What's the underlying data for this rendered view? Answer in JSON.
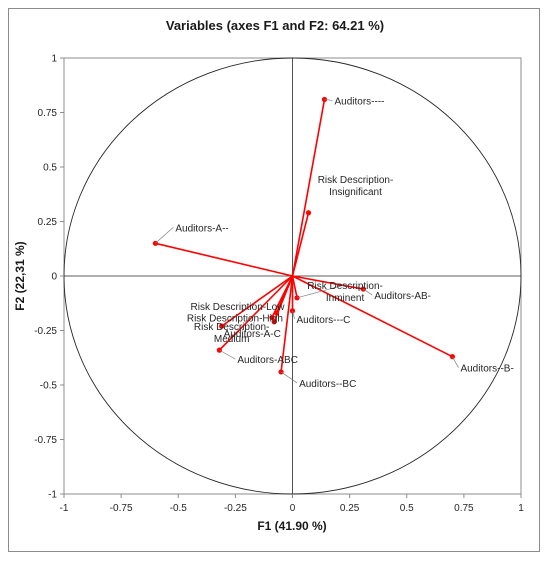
{
  "chart_data": {
    "type": "scatter",
    "title": "Variables (axes F1 and F2: 64.21 %)",
    "xlabel": "F1 (41.90 %)",
    "ylabel": "F2 (22,31 %)",
    "xlim": [
      -1,
      1
    ],
    "ylim": [
      -1,
      1
    ],
    "x_ticks": [
      "-1",
      "-0.75",
      "-0.5",
      "-0.25",
      "0",
      "0.25",
      "0.5",
      "0.75",
      "1"
    ],
    "y_ticks": [
      "1",
      "0.75",
      "0.5",
      "0.25",
      "0",
      "-0.25",
      "-0.5",
      "-0.75",
      "-1"
    ],
    "grid": false,
    "correlation_circle": true,
    "vector_color": "#ff0000",
    "points": [
      {
        "label": "Auditors----",
        "x": 0.14,
        "y": 0.81
      },
      {
        "label": "Risk Description-Insignificant",
        "x": 0.07,
        "y": 0.29
      },
      {
        "label": "Auditors-A--",
        "x": -0.6,
        "y": 0.15
      },
      {
        "label": "Auditors-AB-",
        "x": 0.31,
        "y": -0.06
      },
      {
        "label": "Auditors--B-",
        "x": 0.7,
        "y": -0.37
      },
      {
        "label": "Risk Description-Inminent",
        "x": 0.02,
        "y": -0.1
      },
      {
        "label": "Auditors---C",
        "x": 0.0,
        "y": -0.16
      },
      {
        "label": "Risk Description-Low",
        "x": -0.07,
        "y": -0.17
      },
      {
        "label": "Risk Description-High",
        "x": -0.09,
        "y": -0.19
      },
      {
        "label": "Auditors-A-C",
        "x": -0.08,
        "y": -0.21
      },
      {
        "label": "Risk Description-Medium",
        "x": -0.31,
        "y": -0.23
      },
      {
        "label": "Auditors-ABC",
        "x": -0.32,
        "y": -0.34
      },
      {
        "label": "Auditors--BC",
        "x": -0.05,
        "y": -0.44
      }
    ]
  }
}
